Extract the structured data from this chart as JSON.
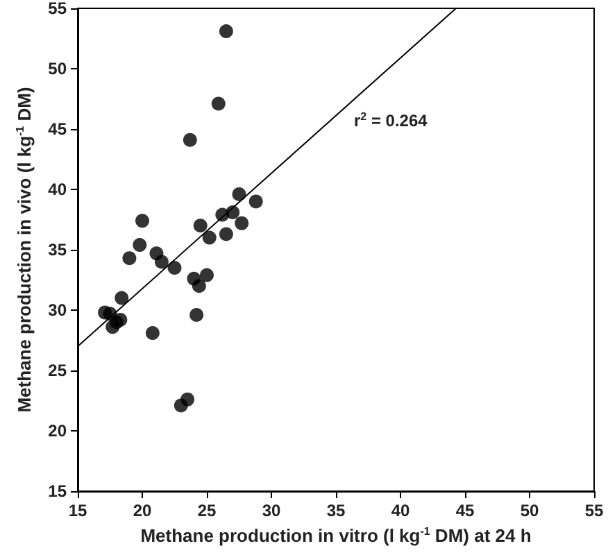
{
  "chart_data": {
    "type": "scatter",
    "xlabel": "Methane production in vitro (l kg$^{-1}$ DM) at 24 h",
    "ylabel": "Methane production in vivo (l kg$^{-1}$ DM)",
    "annotations": [
      "r$^{2}$ = 0.264"
    ],
    "series": [
      {
        "color": "#000000",
        "marker": "circle",
        "x": [
          26.5,
          25.9,
          23.7,
          27.5,
          28.8,
          27.0,
          26.2,
          20.0,
          24.5,
          27.7,
          26.5,
          25.2,
          19.8,
          21.1,
          21.5,
          19.0,
          22.5,
          25.0,
          24.0,
          24.4,
          18.4,
          17.1,
          17.5,
          24.2,
          18.3,
          18.0,
          17.7,
          20.8,
          23.5,
          23.0
        ],
        "values": [
          53.1,
          47.1,
          44.1,
          39.6,
          39.0,
          38.1,
          37.9,
          37.4,
          37.0,
          37.2,
          36.3,
          36.0,
          35.4,
          34.7,
          34.0,
          34.3,
          33.5,
          32.9,
          32.6,
          32.0,
          31.0,
          29.8,
          29.7,
          29.6,
          29.2,
          29.0,
          28.6,
          28.1,
          22.6,
          22.1
        ]
      },
      {
        "type": "line",
        "marker": "none",
        "color": "#000000",
        "x": [
          15,
          44.3
        ],
        "values": [
          27.0,
          55.0
        ]
      }
    ],
    "grid": false,
    "xlim": [
      15,
      55
    ],
    "xticks": [
      15,
      20,
      25,
      30,
      35,
      40,
      45,
      50,
      55
    ],
    "ylim": [
      15,
      55
    ],
    "yticks": [
      15,
      20,
      25,
      30,
      35,
      40,
      45,
      50,
      55
    ]
  }
}
